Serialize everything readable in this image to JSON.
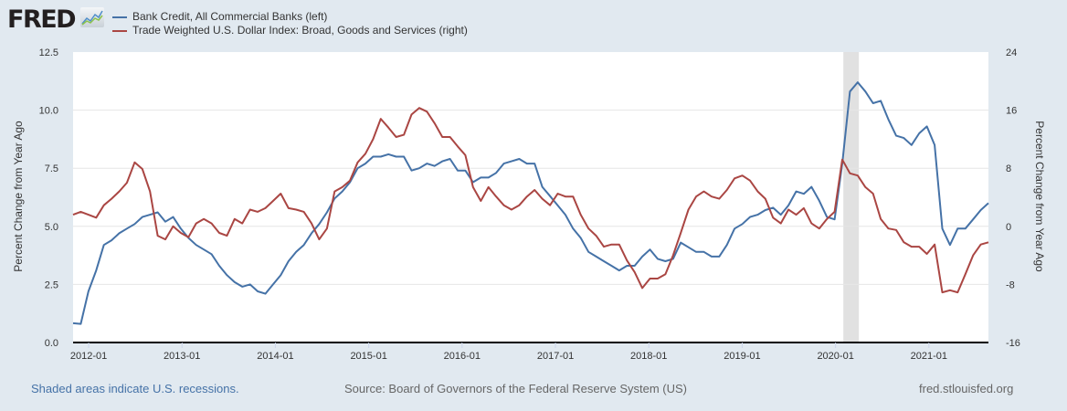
{
  "header": {
    "logo_text": "FRED",
    "logo_icon": "fred-chart-icon"
  },
  "legend": [
    {
      "label": "Bank Credit, All Commercial Banks (left)",
      "color": "#4572a7"
    },
    {
      "label": "Trade Weighted U.S. Dollar Index: Broad, Goods and Services (right)",
      "color": "#aa4643"
    }
  ],
  "footer": {
    "recession_note": "Shaded areas indicate U.S. recessions.",
    "source": "Source: Board of Governors of the Federal Reserve System (US)",
    "site": "fred.stlouisfed.org"
  },
  "chart_data": {
    "type": "line",
    "title": "",
    "xlabel": "",
    "ylabel_left": "Percent Change from Year Ago",
    "ylabel_right": "Percent Change from Year Ago",
    "x_start": "2011-11",
    "x_step": "month",
    "x_ticks": [
      "2012-01",
      "2013-01",
      "2014-01",
      "2015-01",
      "2016-01",
      "2017-01",
      "2018-01",
      "2019-01",
      "2020-01",
      "2021-01"
    ],
    "ylim_left": [
      0,
      12.5
    ],
    "yticks_left": [
      "0.0",
      "2.5",
      "5.0",
      "7.5",
      "10.0",
      "12.5"
    ],
    "ylim_right": [
      -16,
      24
    ],
    "yticks_right": [
      "-16",
      "-8",
      "0",
      "8",
      "16",
      "24"
    ],
    "grid": true,
    "legend_position": "top-left",
    "recessions": [
      {
        "start": "2020-02",
        "end": "2020-04"
      }
    ],
    "series": [
      {
        "name": "Bank Credit, All Commercial Banks (left)",
        "axis": "left",
        "color": "#4572a7",
        "values": [
          0.83,
          0.8,
          2.2,
          3.1,
          4.2,
          4.4,
          4.7,
          4.9,
          5.1,
          5.4,
          5.5,
          5.6,
          5.2,
          5.4,
          4.9,
          4.5,
          4.2,
          4.0,
          3.8,
          3.3,
          2.9,
          2.6,
          2.4,
          2.5,
          2.2,
          2.1,
          2.5,
          2.9,
          3.5,
          3.9,
          4.2,
          4.7,
          5.1,
          5.6,
          6.2,
          6.5,
          6.9,
          7.5,
          7.7,
          8.0,
          8.0,
          8.1,
          8.0,
          8.0,
          7.4,
          7.5,
          7.7,
          7.6,
          7.8,
          7.9,
          7.4,
          7.4,
          6.9,
          7.1,
          7.1,
          7.3,
          7.7,
          7.8,
          7.9,
          7.7,
          7.7,
          6.7,
          6.3,
          5.9,
          5.5,
          4.9,
          4.5,
          3.9,
          3.7,
          3.5,
          3.3,
          3.1,
          3.3,
          3.3,
          3.7,
          4.0,
          3.6,
          3.5,
          3.6,
          4.3,
          4.1,
          3.9,
          3.9,
          3.7,
          3.7,
          4.2,
          4.9,
          5.1,
          5.4,
          5.5,
          5.7,
          5.8,
          5.5,
          5.9,
          6.5,
          6.4,
          6.7,
          6.1,
          5.4,
          5.3,
          7.7,
          10.8,
          11.2,
          10.8,
          10.3,
          10.4,
          9.6,
          8.9,
          8.8,
          8.5,
          9.0,
          9.3,
          8.5,
          4.9,
          4.2,
          4.9,
          4.9,
          5.3,
          5.7,
          6.0
        ]
      },
      {
        "name": "Trade Weighted U.S. Dollar Index: Broad, Goods and Services (right)",
        "axis": "right",
        "color": "#aa4643",
        "values": [
          1.6,
          2.0,
          1.6,
          1.2,
          2.9,
          3.8,
          4.8,
          6.0,
          8.8,
          7.9,
          4.8,
          -1.3,
          -1.8,
          0,
          -0.9,
          -1.5,
          0.4,
          1.0,
          0.4,
          -0.9,
          -1.3,
          1.0,
          0.4,
          2.3,
          2.0,
          2.5,
          3.5,
          4.5,
          2.5,
          2.3,
          2.0,
          0.4,
          -1.8,
          -0.3,
          4.8,
          5.4,
          6.3,
          8.8,
          10.0,
          12.0,
          14.8,
          13.6,
          12.3,
          12.6,
          15.4,
          16.3,
          15.8,
          14.2,
          12.3,
          12.3,
          11.0,
          9.8,
          5.4,
          3.5,
          5.4,
          4.1,
          2.9,
          2.3,
          2.9,
          4.1,
          5.0,
          3.8,
          2.9,
          4.5,
          4.1,
          4.1,
          1.6,
          -0.3,
          -1.3,
          -2.8,
          -2.5,
          -2.5,
          -4.7,
          -6.3,
          -8.5,
          -7.2,
          -7.2,
          -6.6,
          -4.0,
          -0.9,
          2.3,
          4.1,
          4.8,
          4.1,
          3.8,
          5.0,
          6.6,
          7.0,
          6.3,
          4.8,
          3.8,
          1.2,
          0.4,
          2.3,
          1.6,
          2.5,
          0.4,
          -0.3,
          1.0,
          2.0,
          9.2,
          7.3,
          7.0,
          5.4,
          4.5,
          1.0,
          -0.3,
          -0.5,
          -2.2,
          -2.8,
          -2.8,
          -3.8,
          -2.5,
          -9.1,
          -8.8,
          -9.1,
          -6.6,
          -4.0,
          -2.5,
          -2.2
        ]
      }
    ]
  }
}
